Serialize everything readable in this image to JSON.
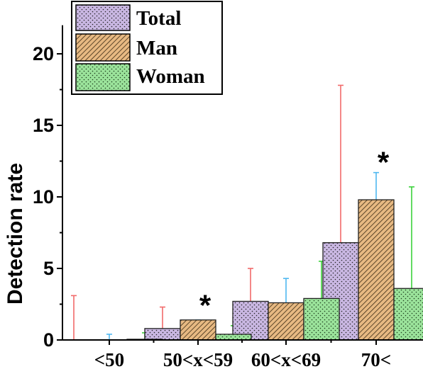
{
  "chart_data": {
    "type": "bar",
    "title": "",
    "xlabel": "",
    "ylabel": "Detection rate",
    "ylim": [
      0,
      22
    ],
    "yticks": [
      "0",
      "5",
      "10",
      "15",
      "20"
    ],
    "grid": false,
    "legend_position": "top-left",
    "categories": [
      "<50",
      "50<x<59",
      "60<x<69",
      "70<"
    ],
    "series": [
      {
        "name": "Total",
        "color": "#C9B7E2",
        "pattern": "dots",
        "values": [
          0.0,
          0.8,
          2.7,
          6.8
        ],
        "error_upper": [
          3.1,
          2.3,
          5.0,
          17.8
        ],
        "error_color": "#F26B6B"
      },
      {
        "name": "Man",
        "color": "#E7B982",
        "pattern": "diagonal-hatch",
        "values": [
          0.0,
          1.4,
          2.6,
          9.8
        ],
        "error_upper": [
          0.4,
          1.4,
          4.3,
          11.7
        ],
        "error_color": "#4FB8F0"
      },
      {
        "name": "Woman",
        "color": "#9BE39B",
        "pattern": "dots",
        "values": [
          0.05,
          0.4,
          2.9,
          3.6
        ],
        "error_upper": [
          0.5,
          1.0,
          5.5,
          10.7
        ],
        "error_color": "#3CD23C"
      }
    ],
    "annotations": [
      {
        "text": "*",
        "category": "50<x<59",
        "y": 3.0
      },
      {
        "text": "*",
        "category": "70<",
        "y": 13.0
      }
    ]
  }
}
